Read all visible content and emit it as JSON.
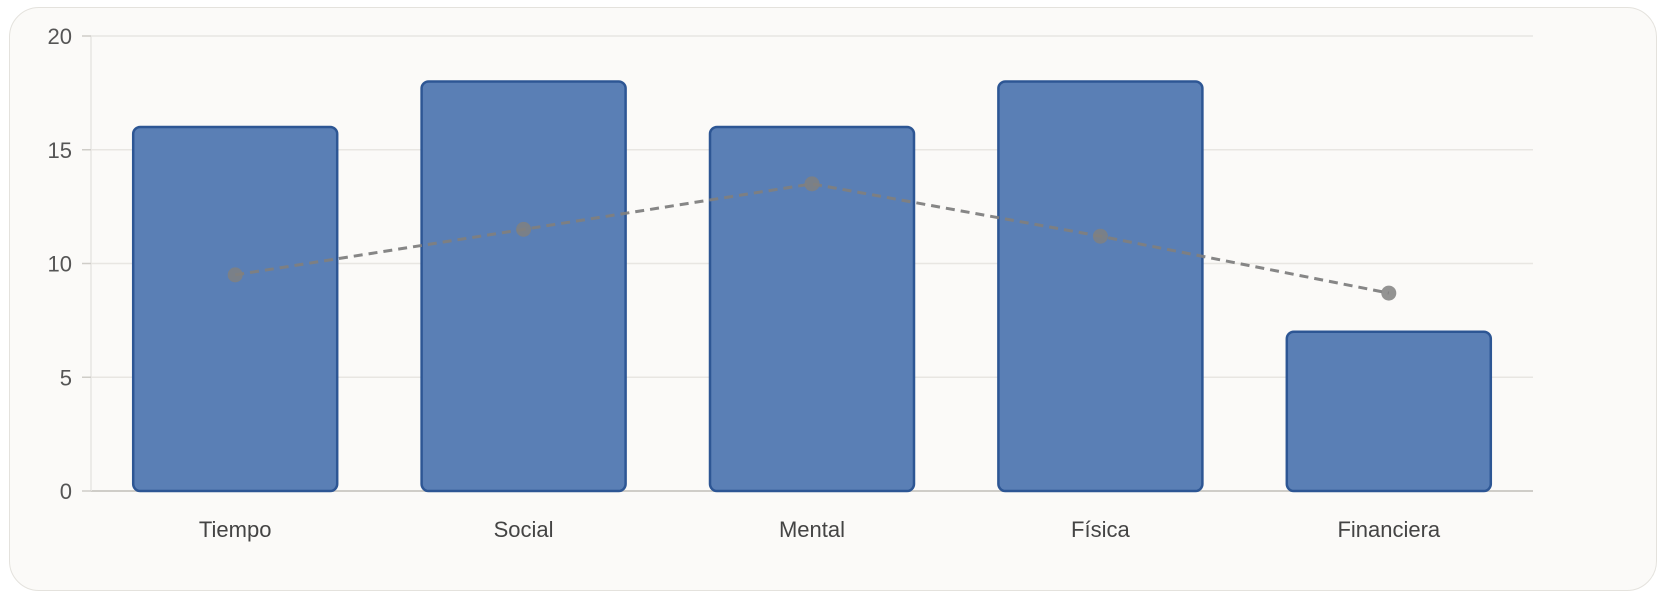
{
  "chart_data": {
    "type": "bar",
    "categories": [
      "Tiempo",
      "Social",
      "Mental",
      "Física",
      "Financiera"
    ],
    "series": [
      {
        "type": "bar",
        "values": [
          16,
          18,
          16,
          18,
          7
        ]
      },
      {
        "type": "line",
        "style": "dashed",
        "values": [
          9.5,
          11.5,
          13.5,
          11.2,
          8.7
        ]
      }
    ],
    "yticks": [
      "0",
      "5",
      "10",
      "15",
      "20"
    ],
    "ylim": [
      0,
      20
    ],
    "grid": true,
    "colors": {
      "bar_fill": "#5a7fb5",
      "bar_stroke": "#2d5694",
      "line": "#808080",
      "grid": "#e8e6e2",
      "axis": "#cfcdc8"
    }
  }
}
